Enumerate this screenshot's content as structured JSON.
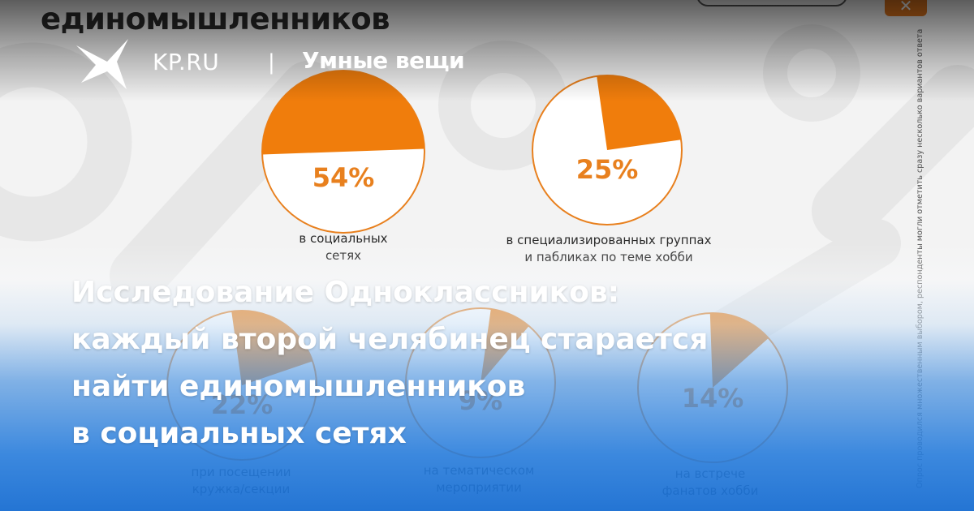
{
  "chart_data": {
    "type": "pie",
    "title": "единомышленников",
    "unit": "%",
    "slices": [
      {
        "value": 54,
        "label": "54%",
        "caption": [
          "в социальных",
          "сетях"
        ]
      },
      {
        "value": 25,
        "label": "25%",
        "caption": [
          "в специализированных группах",
          "и пабликах по теме хобби"
        ]
      },
      {
        "value": 22,
        "label": "22%",
        "caption": [
          "при посещении",
          "кружка/секции"
        ]
      },
      {
        "value": 9,
        "label": "9%",
        "caption": [
          "на тематическом",
          "мероприятии"
        ]
      },
      {
        "value": 14,
        "label": "14%",
        "caption": [
          "на встрече",
          "фанатов хобби"
        ]
      }
    ],
    "footnote": "Опрос проводился множественным выбором, респонденты могли отметить сразу несколько вариантов ответа",
    "colors": {
      "fill": "#f07d0c",
      "outline": "#e8801e",
      "value_text": "#e8801e"
    }
  },
  "brand": {
    "name": "KP.RU",
    "separator": "|",
    "section": "Умные вещи",
    "logo_icon": "swallow-icon"
  },
  "headline": {
    "lines": [
      "Исследование Одноклассников:",
      "каждый второй челябинец старается",
      "найти единомышленников",
      "в социальных сетях"
    ]
  },
  "controls": {
    "close_label": "✕"
  }
}
